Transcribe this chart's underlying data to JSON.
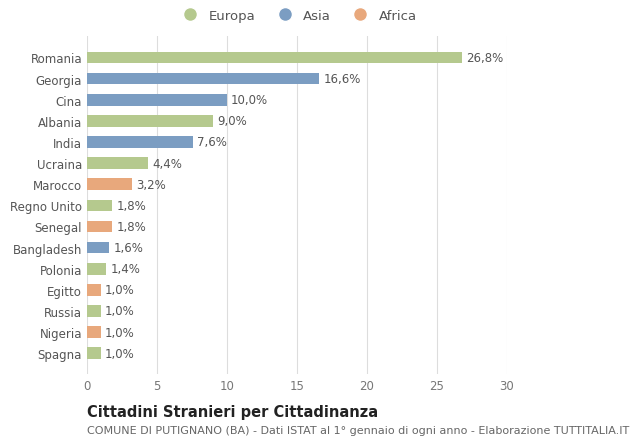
{
  "countries": [
    "Romania",
    "Georgia",
    "Cina",
    "Albania",
    "India",
    "Ucraina",
    "Marocco",
    "Regno Unito",
    "Senegal",
    "Bangladesh",
    "Polonia",
    "Egitto",
    "Russia",
    "Nigeria",
    "Spagna"
  ],
  "values": [
    26.8,
    16.6,
    10.0,
    9.0,
    7.6,
    4.4,
    3.2,
    1.8,
    1.8,
    1.6,
    1.4,
    1.0,
    1.0,
    1.0,
    1.0
  ],
  "labels": [
    "26,8%",
    "16,6%",
    "10,0%",
    "9,0%",
    "7,6%",
    "4,4%",
    "3,2%",
    "1,8%",
    "1,8%",
    "1,6%",
    "1,4%",
    "1,0%",
    "1,0%",
    "1,0%",
    "1,0%"
  ],
  "continents": [
    "Europa",
    "Asia",
    "Asia",
    "Europa",
    "Asia",
    "Europa",
    "Africa",
    "Europa",
    "Africa",
    "Asia",
    "Europa",
    "Africa",
    "Europa",
    "Africa",
    "Europa"
  ],
  "colors": {
    "Europa": "#b5c98e",
    "Asia": "#7b9dc2",
    "Africa": "#e8a87c"
  },
  "legend_labels": [
    "Europa",
    "Asia",
    "Africa"
  ],
  "xlim": [
    0,
    30
  ],
  "xticks": [
    0,
    5,
    10,
    15,
    20,
    25,
    30
  ],
  "title": "Cittadini Stranieri per Cittadinanza",
  "subtitle": "COMUNE DI PUTIGNANO (BA) - Dati ISTAT al 1° gennaio di ogni anno - Elaborazione TUTTITALIA.IT",
  "bg_color": "#ffffff",
  "grid_color": "#dddddd",
  "bar_height": 0.55,
  "label_fontsize": 8.5,
  "title_fontsize": 10.5,
  "subtitle_fontsize": 8,
  "tick_fontsize": 8.5,
  "legend_fontsize": 9.5
}
